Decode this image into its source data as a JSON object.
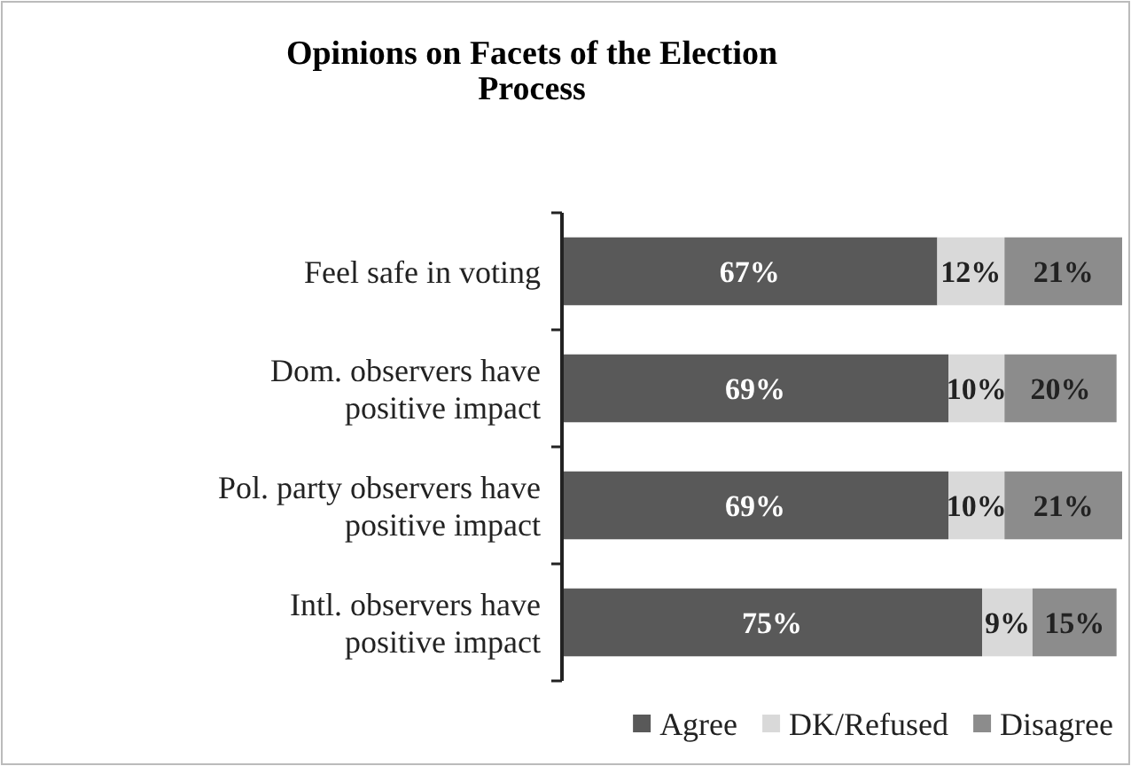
{
  "chart_data": {
    "type": "bar",
    "orientation": "horizontal",
    "stacked": true,
    "title": "Opinions on Facets of the Election Process",
    "categories": [
      "Feel safe in voting",
      "Dom. observers have positive impact",
      "Pol. party observers have positive impact",
      "Intl. observers have positive impact"
    ],
    "series": [
      {
        "name": "Agree",
        "color": "#595959",
        "values": [
          67,
          69,
          69,
          75
        ],
        "value_labels": [
          "67%",
          "69%",
          "69%",
          "75%"
        ]
      },
      {
        "name": "DK/Refused",
        "color": "#d9d9d9",
        "values": [
          12,
          10,
          10,
          9
        ],
        "value_labels": [
          "12%",
          "10%",
          "10%",
          "9%"
        ]
      },
      {
        "name": "Disagree",
        "color": "#8c8c8c",
        "values": [
          21,
          20,
          21,
          15
        ],
        "value_labels": [
          "21%",
          "20%",
          "21%",
          "15%"
        ]
      }
    ],
    "xlim": [
      0,
      100
    ],
    "tick_labels": "y",
    "legend": "bottom"
  }
}
